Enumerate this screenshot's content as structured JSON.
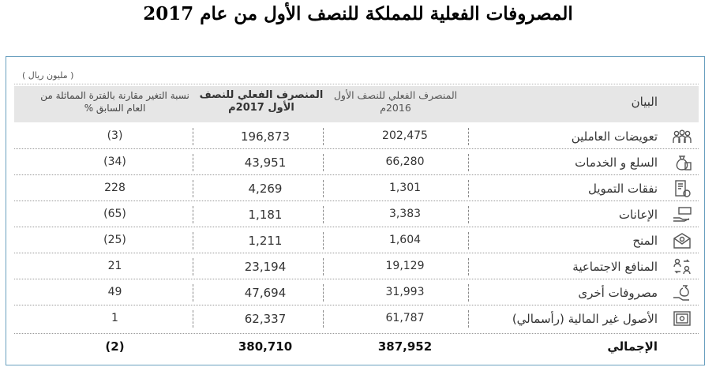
{
  "title": "المصروفات الفعلية للمملكة للنصف الأول من عام 2017",
  "unit_note": "( مليون ريال )",
  "headers": {
    "item": "البيان",
    "h2016": "المنصرف الفعلي للنصف الأول 2016م",
    "h2017": "المنصرف الفعلي للنصف الأول 2017م",
    "change": "نسبة التغير مقارنة بالفترة المماثلة من العام السابق %"
  },
  "rows": [
    {
      "label": "تعويضات العاملين",
      "v2016": "202,475",
      "v2017": "196,873",
      "change": "(3)",
      "icon": "employees-icon"
    },
    {
      "label": "السلع و الخدمات",
      "v2016": "66,280",
      "v2017": "43,951",
      "change": "(34)",
      "icon": "money-bag-icon"
    },
    {
      "label": "نفقات التمويل",
      "v2016": "1,301",
      "v2017": "4,269",
      "change": "228",
      "icon": "finance-document-icon"
    },
    {
      "label": "الإعانات",
      "v2016": "3,383",
      "v2017": "1,181",
      "change": "(65)",
      "icon": "hand-cash-icon"
    },
    {
      "label": "المنح",
      "v2016": "1,604",
      "v2017": "1,211",
      "change": "(25)",
      "icon": "envelope-icon"
    },
    {
      "label": "المنافع الاجتماعية",
      "v2016": "19,129",
      "v2017": "23,194",
      "change": "21",
      "icon": "people-exchange-icon"
    },
    {
      "label": "مصروفات أخرى",
      "v2016": "31,993",
      "v2017": "47,694",
      "change": "49",
      "icon": "hand-bag-icon"
    },
    {
      "label": "الأصول غير المالية (رأسمالي)",
      "v2016": "61,787",
      "v2017": "62,337",
      "change": "1",
      "icon": "safe-icon"
    }
  ],
  "total": {
    "label": "الإجمالي",
    "v2016": "387,952",
    "v2017": "380,710",
    "change": "(2)"
  },
  "colors": {
    "frame": "#6aa0bf",
    "header_bg": "#e6e6e6",
    "icon": "#555555"
  }
}
